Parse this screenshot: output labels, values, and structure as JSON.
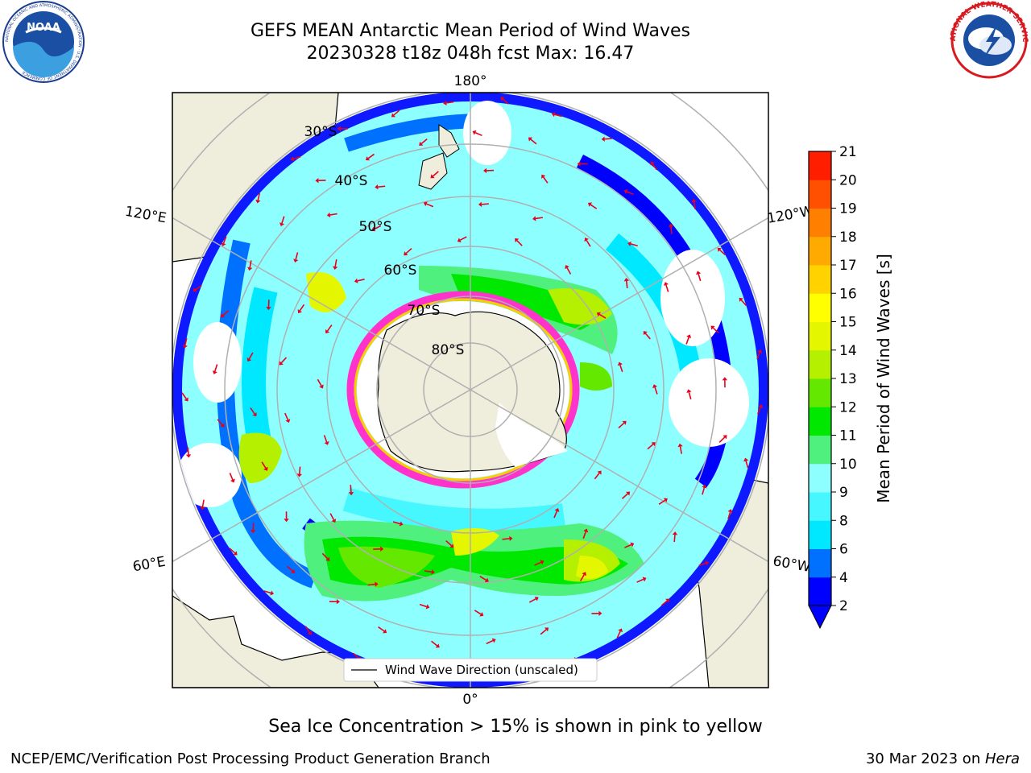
{
  "title": {
    "line1": "GEFS MEAN Antarctic Mean Period of Wind Waves",
    "line2": "20230328 t18z 048h fcst   Max: 16.47"
  },
  "map": {
    "projection": "south-polar-stereographic",
    "longitude_labels": [
      "180°",
      "120°E",
      "120°W",
      "60°E",
      "60°W",
      "0°"
    ],
    "latitude_labels": [
      "30°S",
      "40°S",
      "50°S",
      "60°S",
      "70°S",
      "80°S"
    ],
    "legend_label": "Wind Wave Direction (unscaled)",
    "arrow_color": "#e8001c",
    "land_color": "#efeedd",
    "ocean_color": "#ffffff",
    "grid_color": "#b0b0b0"
  },
  "colorbar": {
    "title": "Mean Period of Wind Waves [s]",
    "ticks": [
      "2",
      "4",
      "6",
      "8",
      "9",
      "10",
      "11",
      "12",
      "13",
      "14",
      "15",
      "16",
      "17",
      "18",
      "19",
      "20",
      "21"
    ],
    "colors_bottom_to_top": [
      "#0000ff",
      "#0070ff",
      "#00e8ff",
      "#47f7ff",
      "#8effff",
      "#50f07f",
      "#00e800",
      "#65e800",
      "#b4f000",
      "#e5f700",
      "#ffff00",
      "#ffd200",
      "#ffaa00",
      "#ff7f00",
      "#ff4f00",
      "#ff1f00"
    ],
    "extend": "min"
  },
  "footer_note": "Sea Ice Concentration > 15% is shown in pink to yellow",
  "credits": {
    "left": "NCEP/EMC/Verification Post Processing Product Generation Branch",
    "right_date": "30 Mar 2023 on ",
    "right_system": "Hera"
  },
  "logos": {
    "left": "NOAA",
    "left_ring": "NATIONAL OCEANIC AND ATMOSPHERIC ADMINISTRATION · U.S. DEPARTMENT OF COMMERCE",
    "right": "NATIONAL WEATHER SERVICE"
  }
}
